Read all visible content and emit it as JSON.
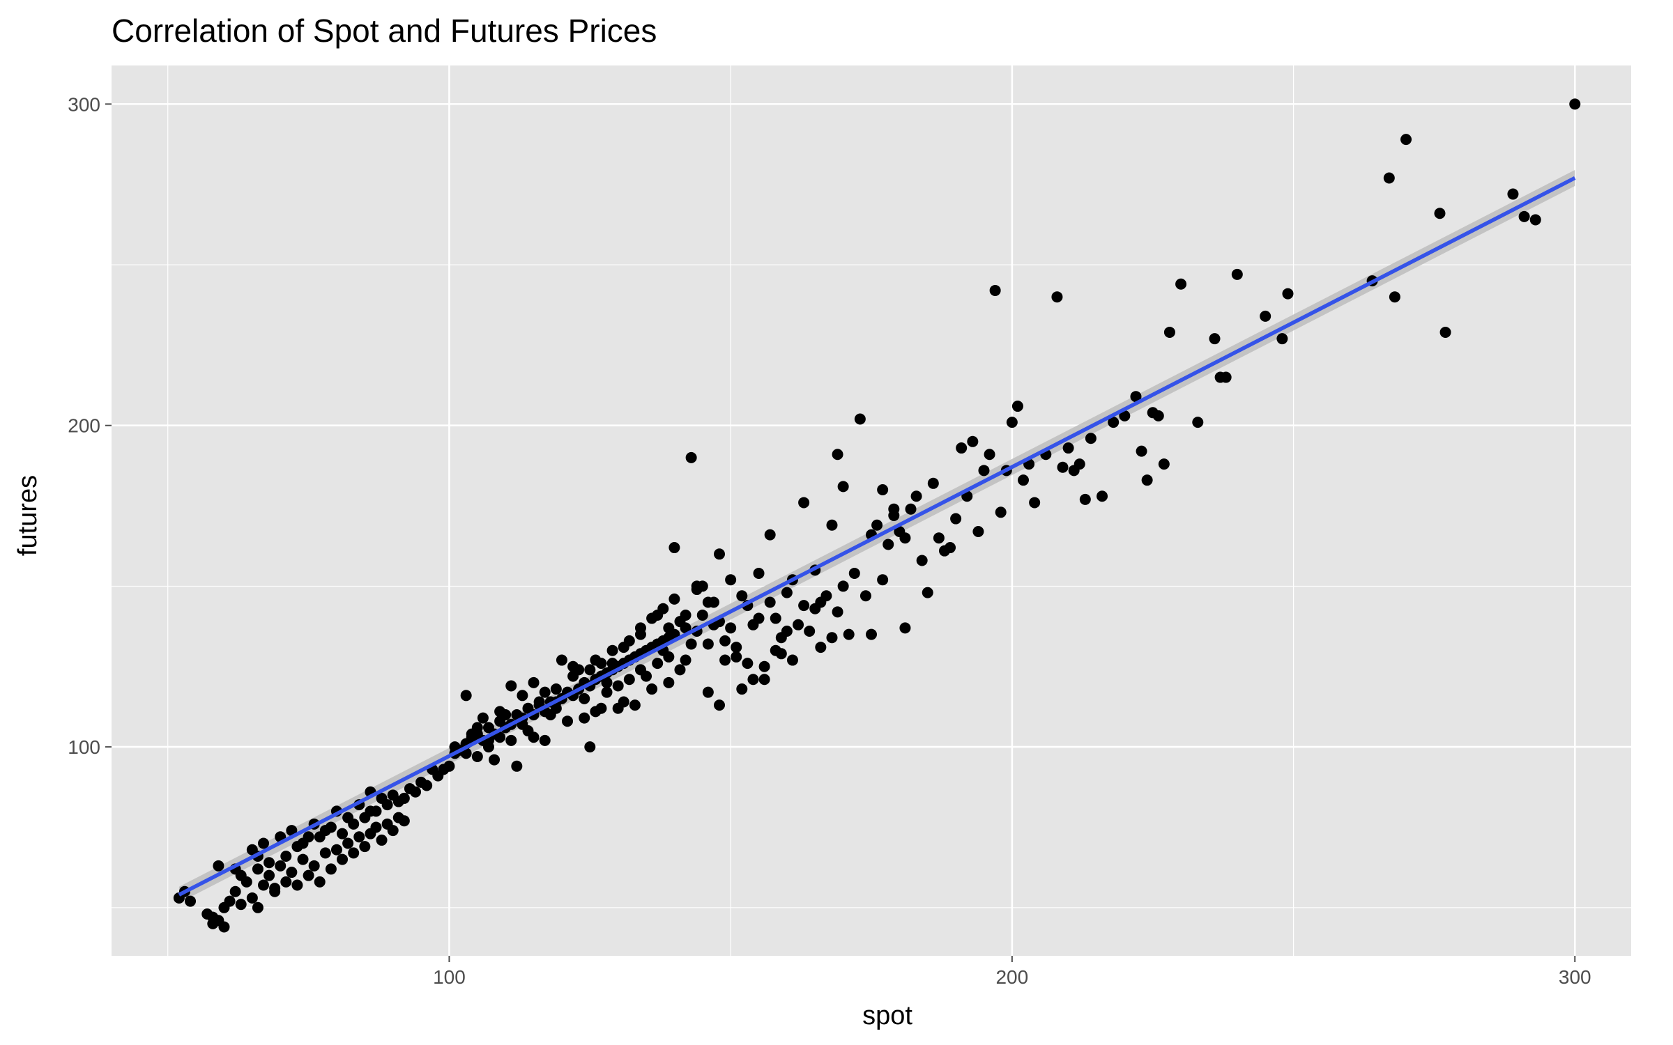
{
  "chart_data": {
    "type": "scatter",
    "title": "Correlation of Spot and Futures Prices",
    "xlabel": "spot",
    "ylabel": "futures",
    "xlim": [
      40,
      310
    ],
    "ylim": [
      35,
      312
    ],
    "x_ticks": [
      100,
      200,
      300
    ],
    "x_minor_ticks": [
      50,
      150,
      250
    ],
    "y_ticks": [
      100,
      200,
      300
    ],
    "y_minor_ticks": [
      50,
      150,
      250
    ],
    "grid": true,
    "colors": {
      "panel": "#e5e5e5",
      "grid": "#ffffff",
      "points": "#000000",
      "trend": "#3553e8",
      "band": "#bdbdbd",
      "ticks": "#4d4d4d"
    },
    "trend_line": {
      "method": "linear",
      "x_start": 52,
      "x_end": 300,
      "y_start": 54,
      "y_end": 277,
      "band": 2.5
    },
    "points": [
      [
        52,
        53
      ],
      [
        53,
        55
      ],
      [
        54,
        52
      ],
      [
        57,
        48
      ],
      [
        58,
        47
      ],
      [
        59,
        46
      ],
      [
        60,
        44
      ],
      [
        58,
        45
      ],
      [
        60,
        50
      ],
      [
        61,
        52
      ],
      [
        62,
        55
      ],
      [
        63,
        60
      ],
      [
        65,
        53
      ],
      [
        64,
        58
      ],
      [
        66,
        62
      ],
      [
        67,
        57
      ],
      [
        68,
        60
      ],
      [
        69,
        55
      ],
      [
        70,
        63
      ],
      [
        71,
        58
      ],
      [
        72,
        61
      ],
      [
        73,
        57
      ],
      [
        74,
        65
      ],
      [
        75,
        60
      ],
      [
        76,
        63
      ],
      [
        77,
        58
      ],
      [
        78,
        67
      ],
      [
        79,
        62
      ],
      [
        80,
        68
      ],
      [
        81,
        65
      ],
      [
        82,
        70
      ],
      [
        83,
        67
      ],
      [
        84,
        72
      ],
      [
        85,
        69
      ],
      [
        86,
        73
      ],
      [
        87,
        75
      ],
      [
        88,
        71
      ],
      [
        89,
        76
      ],
      [
        90,
        74
      ],
      [
        91,
        78
      ],
      [
        92,
        77
      ],
      [
        65,
        68
      ],
      [
        63,
        51
      ],
      [
        59,
        63
      ],
      [
        67,
        70
      ],
      [
        70,
        72
      ],
      [
        72,
        74
      ],
      [
        74,
        70
      ],
      [
        76,
        76
      ],
      [
        78,
        74
      ],
      [
        80,
        80
      ],
      [
        82,
        78
      ],
      [
        84,
        82
      ],
      [
        86,
        80
      ],
      [
        88,
        84
      ],
      [
        90,
        85
      ],
      [
        92,
        84
      ],
      [
        94,
        86
      ],
      [
        96,
        88
      ],
      [
        62,
        62
      ],
      [
        66,
        66
      ],
      [
        68,
        64
      ],
      [
        71,
        66
      ],
      [
        73,
        69
      ],
      [
        75,
        72
      ],
      [
        77,
        72
      ],
      [
        79,
        75
      ],
      [
        81,
        73
      ],
      [
        83,
        76
      ],
      [
        85,
        78
      ],
      [
        87,
        80
      ],
      [
        89,
        82
      ],
      [
        91,
        83
      ],
      [
        93,
        87
      ],
      [
        95,
        89
      ],
      [
        97,
        93
      ],
      [
        66,
        50
      ],
      [
        69,
        56
      ],
      [
        86,
        86
      ],
      [
        98,
        91
      ],
      [
        99,
        93
      ],
      [
        100,
        94
      ],
      [
        101,
        98
      ],
      [
        102,
        99
      ],
      [
        103,
        101
      ],
      [
        104,
        103
      ],
      [
        105,
        104
      ],
      [
        106,
        102
      ],
      [
        107,
        106
      ],
      [
        108,
        104
      ],
      [
        109,
        108
      ],
      [
        110,
        106
      ],
      [
        111,
        107
      ],
      [
        112,
        110
      ],
      [
        113,
        109
      ],
      [
        114,
        112
      ],
      [
        115,
        110
      ],
      [
        116,
        113
      ],
      [
        117,
        111
      ],
      [
        118,
        114
      ],
      [
        119,
        112
      ],
      [
        120,
        115
      ],
      [
        121,
        117
      ],
      [
        122,
        116
      ],
      [
        123,
        118
      ],
      [
        124,
        120
      ],
      [
        125,
        119
      ],
      [
        126,
        121
      ],
      [
        127,
        122
      ],
      [
        128,
        123
      ],
      [
        129,
        124
      ],
      [
        130,
        125
      ],
      [
        131,
        126
      ],
      [
        132,
        127
      ],
      [
        133,
        128
      ],
      [
        134,
        129
      ],
      [
        135,
        130
      ],
      [
        136,
        131
      ],
      [
        137,
        132
      ],
      [
        138,
        133
      ],
      [
        139,
        134
      ],
      [
        140,
        135
      ],
      [
        103,
        116
      ],
      [
        105,
        97
      ],
      [
        107,
        102
      ],
      [
        108,
        96
      ],
      [
        110,
        110
      ],
      [
        112,
        94
      ],
      [
        113,
        107
      ],
      [
        115,
        120
      ],
      [
        117,
        102
      ],
      [
        119,
        118
      ],
      [
        120,
        127
      ],
      [
        121,
        108
      ],
      [
        123,
        124
      ],
      [
        124,
        115
      ],
      [
        125,
        100
      ],
      [
        126,
        127
      ],
      [
        127,
        112
      ],
      [
        128,
        120
      ],
      [
        129,
        130
      ],
      [
        130,
        119
      ],
      [
        131,
        114
      ],
      [
        132,
        133
      ],
      [
        133,
        113
      ],
      [
        134,
        137
      ],
      [
        135,
        122
      ],
      [
        136,
        140
      ],
      [
        137,
        126
      ],
      [
        138,
        143
      ],
      [
        139,
        128
      ],
      [
        140,
        146
      ],
      [
        141,
        124
      ],
      [
        142,
        141
      ],
      [
        143,
        190
      ],
      [
        144,
        136
      ],
      [
        145,
        150
      ],
      [
        146,
        132
      ],
      [
        147,
        145
      ],
      [
        148,
        113
      ],
      [
        149,
        127
      ],
      [
        150,
        152
      ],
      [
        151,
        131
      ],
      [
        152,
        147
      ],
      [
        153,
        126
      ],
      [
        154,
        138
      ],
      [
        155,
        154
      ],
      [
        156,
        121
      ],
      [
        157,
        166
      ],
      [
        158,
        140
      ],
      [
        159,
        134
      ],
      [
        160,
        148
      ],
      [
        161,
        127
      ],
      [
        162,
        138
      ],
      [
        163,
        144
      ],
      [
        164,
        136
      ],
      [
        165,
        143
      ],
      [
        166,
        131
      ],
      [
        167,
        147
      ],
      [
        168,
        134
      ],
      [
        169,
        142
      ],
      [
        170,
        150
      ],
      [
        171,
        135
      ],
      [
        104,
        104
      ],
      [
        106,
        109
      ],
      [
        109,
        103
      ],
      [
        111,
        119
      ],
      [
        114,
        105
      ],
      [
        116,
        114
      ],
      [
        118,
        110
      ],
      [
        122,
        125
      ],
      [
        124,
        109
      ],
      [
        126,
        111
      ],
      [
        128,
        117
      ],
      [
        130,
        112
      ],
      [
        132,
        121
      ],
      [
        134,
        124
      ],
      [
        136,
        118
      ],
      [
        138,
        130
      ],
      [
        139,
        120
      ],
      [
        140,
        162
      ],
      [
        141,
        139
      ],
      [
        142,
        137
      ],
      [
        143,
        132
      ],
      [
        144,
        149
      ],
      [
        145,
        141
      ],
      [
        146,
        117
      ],
      [
        147,
        138
      ],
      [
        148,
        160
      ],
      [
        149,
        133
      ],
      [
        150,
        137
      ],
      [
        151,
        128
      ],
      [
        152,
        118
      ],
      [
        153,
        144
      ],
      [
        154,
        121
      ],
      [
        155,
        140
      ],
      [
        156,
        125
      ],
      [
        157,
        145
      ],
      [
        158,
        130
      ],
      [
        159,
        129
      ],
      [
        160,
        136
      ],
      [
        161,
        152
      ],
      [
        163,
        176
      ],
      [
        165,
        155
      ],
      [
        166,
        145
      ],
      [
        168,
        169
      ],
      [
        169,
        191
      ],
      [
        170,
        181
      ],
      [
        172,
        154
      ],
      [
        174,
        147
      ],
      [
        175,
        135
      ],
      [
        176,
        169
      ],
      [
        177,
        180
      ],
      [
        178,
        163
      ],
      [
        179,
        174
      ],
      [
        180,
        167
      ],
      [
        181,
        137
      ],
      [
        182,
        174
      ],
      [
        183,
        178
      ],
      [
        184,
        158
      ],
      [
        185,
        148
      ],
      [
        186,
        182
      ],
      [
        187,
        165
      ],
      [
        188,
        161
      ],
      [
        189,
        162
      ],
      [
        190,
        171
      ],
      [
        191,
        193
      ],
      [
        192,
        178
      ],
      [
        193,
        195
      ],
      [
        194,
        167
      ],
      [
        195,
        186
      ],
      [
        196,
        191
      ],
      [
        197,
        242
      ],
      [
        198,
        173
      ],
      [
        199,
        186
      ],
      [
        200,
        201
      ],
      [
        201,
        206
      ],
      [
        202,
        183
      ],
      [
        203,
        188
      ],
      [
        204,
        176
      ],
      [
        206,
        191
      ],
      [
        208,
        240
      ],
      [
        209,
        187
      ],
      [
        210,
        193
      ],
      [
        211,
        186
      ],
      [
        212,
        188
      ],
      [
        213,
        177
      ],
      [
        214,
        196
      ],
      [
        216,
        178
      ],
      [
        218,
        201
      ],
      [
        220,
        203
      ],
      [
        222,
        209
      ],
      [
        223,
        192
      ],
      [
        224,
        183
      ],
      [
        225,
        204
      ],
      [
        226,
        203
      ],
      [
        227,
        188
      ],
      [
        228,
        229
      ],
      [
        230,
        244
      ],
      [
        233,
        201
      ],
      [
        236,
        227
      ],
      [
        237,
        215
      ],
      [
        238,
        215
      ],
      [
        240,
        247
      ],
      [
        245,
        234
      ],
      [
        248,
        227
      ],
      [
        249,
        241
      ],
      [
        264,
        245
      ],
      [
        267,
        277
      ],
      [
        268,
        240
      ],
      [
        270,
        289
      ],
      [
        276,
        266
      ],
      [
        277,
        229
      ],
      [
        289,
        272
      ],
      [
        291,
        265
      ],
      [
        293,
        264
      ],
      [
        300,
        300
      ],
      [
        173,
        202
      ],
      [
        175,
        166
      ],
      [
        177,
        152
      ],
      [
        179,
        172
      ],
      [
        181,
        165
      ],
      [
        148,
        139
      ],
      [
        146,
        145
      ],
      [
        144,
        150
      ],
      [
        142,
        127
      ],
      [
        139,
        137
      ],
      [
        137,
        141
      ],
      [
        134,
        135
      ],
      [
        131,
        131
      ],
      [
        129,
        126
      ],
      [
        127,
        126
      ],
      [
        125,
        124
      ],
      [
        122,
        122
      ],
      [
        119,
        114
      ],
      [
        117,
        117
      ],
      [
        115,
        103
      ],
      [
        113,
        116
      ],
      [
        111,
        102
      ],
      [
        109,
        111
      ],
      [
        107,
        100
      ],
      [
        105,
        106
      ],
      [
        103,
        98
      ],
      [
        101,
        100
      ]
    ]
  }
}
